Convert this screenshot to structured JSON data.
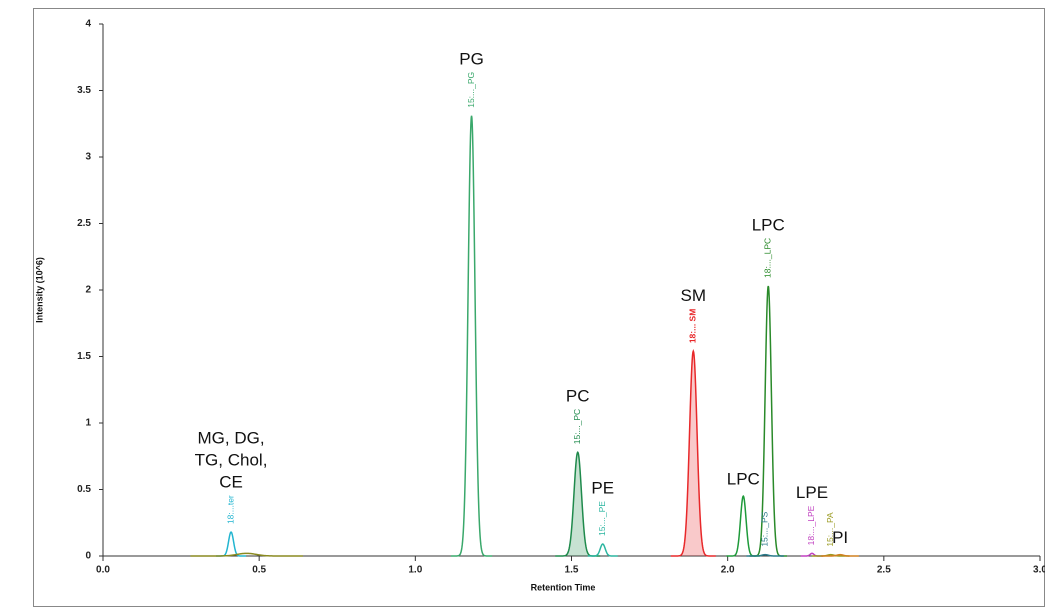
{
  "chart_data": {
    "type": "chromatogram",
    "xlabel": "Retention Time",
    "ylabel": "Intensity (10^6)",
    "xlim": [
      0,
      3.0
    ],
    "ylim": [
      0,
      4
    ],
    "xticks": [
      {
        "value": 0,
        "label": "0.0"
      },
      0.5,
      {
        "value": 1,
        "label": "1.0"
      },
      1.5,
      {
        "value": 2,
        "label": "2.0"
      },
      2.5,
      {
        "value": 3,
        "label": "3.0"
      }
    ],
    "yticks": [
      0,
      0.5,
      1,
      1.5,
      2,
      2.5,
      3,
      3.5,
      4
    ],
    "peaks": [
      {
        "rt": 0.41,
        "height": 0.18,
        "width": 0.008,
        "color": "#22b5d0",
        "tag": "18:...ter",
        "label": [
          "MG, DG,",
          "TG, Chol,",
          "CE"
        ]
      },
      {
        "rt": 0.46,
        "height": 0.02,
        "width": 0.03,
        "color": "#8a8a20"
      },
      {
        "rt": 1.18,
        "height": 3.31,
        "width": 0.011,
        "color": "#3aa86b",
        "tag": "15:..._PG",
        "label": "PG"
      },
      {
        "rt": 1.52,
        "height": 0.78,
        "width": 0.012,
        "color": "#1f8a4c",
        "filled": true,
        "tag": "15:..._PC",
        "label": "PC"
      },
      {
        "rt": 1.6,
        "height": 0.09,
        "width": 0.008,
        "color": "#2bb5a0",
        "tag": "15:..._PE",
        "label": "PE"
      },
      {
        "rt": 1.89,
        "height": 1.54,
        "width": 0.012,
        "color": "#e8282a",
        "filled": true,
        "bold": true,
        "tag": "18:... SM",
        "label": "SM"
      },
      {
        "rt": 2.05,
        "height": 0.45,
        "width": 0.009,
        "color": "#1e9a3a",
        "label": "LPC"
      },
      {
        "rt": 2.13,
        "height": 2.03,
        "width": 0.01,
        "color": "#2a8a2a",
        "tag": "18:..._LPC",
        "label": "LPC"
      },
      {
        "rt": 2.12,
        "height": 0.01,
        "width": 0.01,
        "color": "#2a7a8a",
        "tag": "15:..._PS"
      },
      {
        "rt": 2.27,
        "height": 0.02,
        "width": 0.006,
        "color": "#c040c0",
        "tag": "18:..._LPE",
        "label": "LPE"
      },
      {
        "rt": 2.33,
        "height": 0.01,
        "width": 0.01,
        "color": "#9a9a20",
        "tag": "15:..._PA"
      },
      {
        "rt": 2.36,
        "height": 0.01,
        "width": 0.01,
        "color": "#d08020",
        "label": "PI"
      }
    ]
  }
}
